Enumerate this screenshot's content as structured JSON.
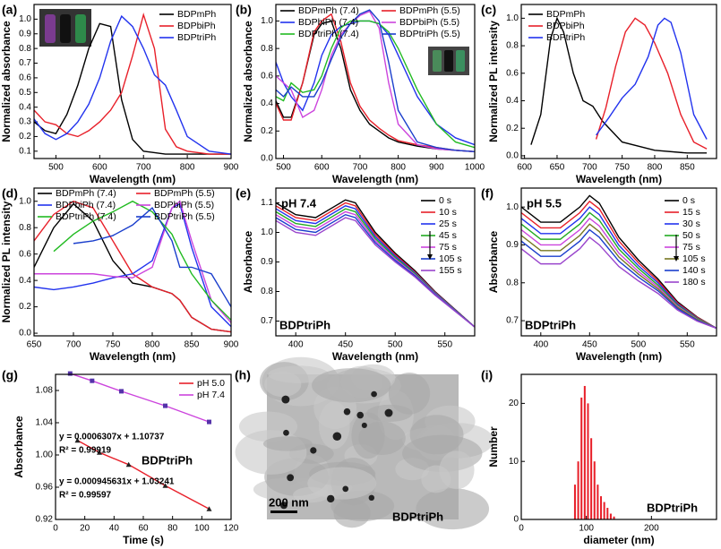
{
  "chart_data": [
    {
      "type": "line",
      "label": "(a)",
      "xlabel": "Wavelength (nm)",
      "ylabel": "Normalized absorbance",
      "xlim": [
        450,
        900
      ],
      "xticks": [
        500,
        600,
        700,
        800,
        900
      ],
      "ylim": [
        0.05,
        1.1
      ],
      "yticks": [
        0.1,
        0.2,
        0.3,
        0.4,
        0.5,
        0.6,
        0.7,
        0.8,
        0.9,
        {
          "value": 1,
          "label": "1.0"
        }
      ],
      "legend": "upper right",
      "x": [
        450,
        475,
        500,
        525,
        550,
        575,
        600,
        625,
        650,
        675,
        700,
        725,
        750,
        775,
        800,
        850,
        900
      ],
      "series": [
        {
          "name": "BDPmPh",
          "color": "#000000",
          "values": [
            0.3,
            0.24,
            0.22,
            0.35,
            0.55,
            0.8,
            0.97,
            0.95,
            0.45,
            0.18,
            0.1,
            0.09,
            0.08,
            0.08,
            0.08,
            0.08,
            0.08
          ]
        },
        {
          "name": "BDPbiPh",
          "color": "#e8202a",
          "values": [
            0.38,
            0.3,
            0.28,
            0.22,
            0.2,
            0.24,
            0.3,
            0.38,
            0.5,
            0.75,
            1.03,
            0.8,
            0.25,
            0.13,
            0.1,
            0.08,
            0.08
          ]
        },
        {
          "name": "BDPtriPh",
          "color": "#2233ee",
          "values": [
            0.32,
            0.22,
            0.18,
            0.22,
            0.3,
            0.42,
            0.6,
            0.85,
            1.02,
            0.95,
            0.8,
            0.62,
            0.55,
            0.38,
            0.2,
            0.1,
            0.08
          ]
        }
      ]
    },
    {
      "type": "line",
      "label": "(b)",
      "xlabel": "Wavelength (nm)",
      "ylabel": "Normalized absorbance",
      "xlim": [
        480,
        1000
      ],
      "xticks": [
        500,
        600,
        700,
        800,
        900,
        1000
      ],
      "ylim": [
        0,
        1.12
      ],
      "yticks": [
        {
          "value": 0,
          "label": "0.0"
        },
        0.2,
        0.4,
        0.6,
        0.8,
        {
          "value": 1,
          "label": "1.0"
        }
      ],
      "legend": "upper",
      "x": [
        480,
        500,
        520,
        550,
        580,
        600,
        625,
        650,
        675,
        700,
        725,
        750,
        775,
        800,
        850,
        900,
        950,
        1000
      ],
      "series": [
        {
          "name": "BDPmPh (7.4)",
          "color": "#000000",
          "values": [
            0.42,
            0.3,
            0.3,
            0.55,
            0.9,
            0.98,
            1.0,
            0.8,
            0.5,
            0.35,
            0.25,
            0.2,
            0.15,
            0.12,
            0.09,
            0.07,
            0.06,
            0.05
          ]
        },
        {
          "name": "BDPmPh (5.5)",
          "color": "#e8202a",
          "values": [
            0.4,
            0.28,
            0.28,
            0.55,
            0.92,
            1.0,
            1.05,
            0.85,
            0.55,
            0.38,
            0.28,
            0.22,
            0.17,
            0.13,
            0.1,
            0.08,
            0.06,
            0.05
          ]
        },
        {
          "name": "BDPbiPh (7.4)",
          "color": "#2233ee",
          "values": [
            0.7,
            0.55,
            0.45,
            0.35,
            0.55,
            0.75,
            0.9,
            0.96,
            0.98,
            1.0,
            1.0,
            0.98,
            0.9,
            0.75,
            0.45,
            0.25,
            0.15,
            0.1
          ]
        },
        {
          "name": "BDPbiPh (5.5)",
          "color": "#cc44dd",
          "values": [
            0.6,
            0.55,
            0.5,
            0.3,
            0.35,
            0.5,
            0.75,
            0.9,
            0.98,
            1.04,
            1.07,
            0.95,
            0.55,
            0.25,
            0.1,
            0.07,
            0.06,
            0.05
          ]
        },
        {
          "name": "BDPtriPh (7.4)",
          "color": "#22bb22",
          "values": [
            0.45,
            0.42,
            0.55,
            0.48,
            0.5,
            0.6,
            0.8,
            0.95,
            1.0,
            1.0,
            1.0,
            0.98,
            0.92,
            0.8,
            0.5,
            0.25,
            0.12,
            0.08
          ]
        },
        {
          "name": "BDPtriPh (5.5)",
          "color": "#1a3ecc",
          "values": [
            0.5,
            0.45,
            0.52,
            0.45,
            0.45,
            0.55,
            0.72,
            0.88,
            0.98,
            1.05,
            1.08,
            1.0,
            0.7,
            0.35,
            0.12,
            0.08,
            0.06,
            0.05
          ]
        }
      ]
    },
    {
      "type": "line",
      "label": "(c)",
      "xlabel": "Wavelength (nm)",
      "ylabel": "Normalized PL intensity",
      "xlim": [
        595,
        895
      ],
      "xticks": [
        600,
        650,
        700,
        750,
        800,
        850
      ],
      "ylim": [
        -0.02,
        1.1
      ],
      "yticks": [
        {
          "value": 0,
          "label": "0.0"
        },
        0.2,
        0.4,
        0.6,
        0.8,
        {
          "value": 1,
          "label": "1.0"
        }
      ],
      "legend": "upper left",
      "series": [
        {
          "name": "BDPmPh",
          "color": "#000000",
          "x": [
            610,
            625,
            640,
            650,
            660,
            675,
            690,
            705,
            720,
            750,
            800,
            850,
            880
          ],
          "values": [
            0.08,
            0.3,
            0.85,
            1.0,
            0.9,
            0.6,
            0.4,
            0.36,
            0.25,
            0.1,
            0.04,
            0.02,
            0.02
          ]
        },
        {
          "name": "BDPbiPh",
          "color": "#e8202a",
          "x": [
            710,
            725,
            740,
            755,
            770,
            785,
            800,
            820,
            840,
            860,
            880
          ],
          "values": [
            0.12,
            0.35,
            0.65,
            0.9,
            1.0,
            0.95,
            0.82,
            0.6,
            0.3,
            0.1,
            0.05
          ]
        },
        {
          "name": "BDPtriPh",
          "color": "#2233ee",
          "x": [
            710,
            730,
            750,
            770,
            790,
            805,
            815,
            825,
            840,
            860,
            880
          ],
          "values": [
            0.15,
            0.28,
            0.42,
            0.52,
            0.72,
            0.95,
            1.0,
            0.97,
            0.75,
            0.3,
            0.12
          ]
        }
      ]
    },
    {
      "type": "line",
      "label": "(d)",
      "xlabel": "Wavelength (nm)",
      "ylabel": "Normalized PL intensity",
      "xlim": [
        650,
        900
      ],
      "xticks": [
        650,
        700,
        750,
        800,
        850,
        900
      ],
      "ylim": [
        -0.02,
        1.1
      ],
      "yticks": [
        {
          "value": 0,
          "label": "0.0"
        },
        0.2,
        0.4,
        0.6,
        0.8,
        {
          "value": 1,
          "label": "1.0"
        }
      ],
      "legend": "upper",
      "x": [
        650,
        675,
        700,
        725,
        750,
        775,
        800,
        825,
        835,
        850,
        875,
        900
      ],
      "series": [
        {
          "name": "BDPmPh (7.4)",
          "color": "#000000",
          "values": [
            0.5,
            0.8,
            0.98,
            0.85,
            0.55,
            0.38,
            0.35,
            0.3,
            0.25,
            0.12,
            0.03,
            0.01
          ]
        },
        {
          "name": "BDPmPh (5.5)",
          "color": "#e8202a",
          "values": [
            0.7,
            0.9,
            1.0,
            0.95,
            0.7,
            0.45,
            0.35,
            0.3,
            0.25,
            0.12,
            0.03,
            0.01
          ]
        },
        {
          "name": "BDPbiPh (7.4)",
          "color": "#2233ee",
          "values": [
            0.35,
            0.33,
            0.35,
            0.38,
            0.42,
            0.45,
            0.55,
            0.95,
            0.98,
            0.65,
            0.2,
            0.05
          ]
        },
        {
          "name": "BDPbiPh (5.5)",
          "color": "#cc44dd",
          "values": [
            0.45,
            0.45,
            0.45,
            0.45,
            0.43,
            0.42,
            0.5,
            0.95,
            1.0,
            0.7,
            0.25,
            0.08
          ]
        },
        {
          "name": "BDPtriPh (7.4)",
          "color": "#22bb22",
          "values": [
            null,
            0.62,
            0.75,
            0.85,
            0.92,
            1.0,
            0.92,
            0.75,
            0.62,
            0.45,
            0.25,
            0.1
          ]
        },
        {
          "name": "BDPtriPh (5.5)",
          "color": "#1a3ecc",
          "values": [
            null,
            null,
            0.68,
            0.7,
            0.74,
            0.82,
            0.95,
            0.7,
            0.5,
            0.5,
            0.45,
            0.2
          ]
        }
      ]
    },
    {
      "type": "line",
      "label": "(e)",
      "xlabel": "Wavelength (nm)",
      "ylabel": "Absorbance",
      "xlim": [
        380,
        580
      ],
      "xticks": [
        400,
        450,
        500,
        550
      ],
      "ylim": [
        0.65,
        1.15
      ],
      "yticks": [
        0.7,
        0.8,
        0.9,
        {
          "value": 1,
          "label": "1.0"
        },
        1.1
      ],
      "legend": "right",
      "annotations": [
        "pH 7.4",
        "BDPtriPh"
      ],
      "x": [
        380,
        400,
        420,
        440,
        450,
        460,
        480,
        500,
        520,
        540,
        560,
        580
      ],
      "series": [
        {
          "name": "0 s",
          "color": "#000000",
          "values": [
            1.1,
            1.06,
            1.05,
            1.09,
            1.11,
            1.1,
            1.0,
            0.93,
            0.87,
            0.8,
            0.74,
            0.68
          ]
        },
        {
          "name": "10 s",
          "color": "#e8202a",
          "values": [
            1.09,
            1.05,
            1.04,
            1.08,
            1.1,
            1.09,
            0.993,
            0.925,
            0.866,
            0.798,
            0.739,
            0.68
          ]
        },
        {
          "name": "25 s",
          "color": "#2233ee",
          "values": [
            1.08,
            1.04,
            1.03,
            1.07,
            1.09,
            1.08,
            0.986,
            0.92,
            0.863,
            0.796,
            0.738,
            0.68
          ]
        },
        {
          "name": "45 s",
          "color": "#22aa22",
          "values": [
            1.07,
            1.03,
            1.02,
            1.06,
            1.08,
            1.07,
            0.979,
            0.915,
            0.86,
            0.794,
            0.737,
            0.68
          ]
        },
        {
          "name": "75 s",
          "color": "#cc44dd",
          "values": [
            1.06,
            1.02,
            1.01,
            1.05,
            1.07,
            1.06,
            0.972,
            0.91,
            0.856,
            0.792,
            0.736,
            0.68
          ]
        },
        {
          "name": "105 s",
          "color": "#1a3ecc",
          "values": [
            1.05,
            1.01,
            1.0,
            1.04,
            1.06,
            1.05,
            0.965,
            0.905,
            0.853,
            0.79,
            0.735,
            0.68
          ]
        },
        {
          "name": "155 s",
          "color": "#9944cc",
          "values": [
            1.04,
            1.0,
            0.99,
            1.03,
            1.05,
            1.04,
            0.958,
            0.9,
            0.849,
            0.788,
            0.734,
            0.68
          ]
        }
      ]
    },
    {
      "type": "line",
      "label": "(f)",
      "xlabel": "Wavelength (nm)",
      "ylabel": "Absorbance",
      "xlim": [
        380,
        580
      ],
      "xticks": [
        400,
        450,
        500,
        550
      ],
      "ylim": [
        0.66,
        1.05
      ],
      "yticks": [
        0.7,
        0.8,
        0.9,
        {
          "value": 1,
          "label": "1.0"
        }
      ],
      "legend": "right",
      "annotations": [
        "pH 5.5",
        "BDPtriPh"
      ],
      "x": [
        380,
        400,
        420,
        440,
        450,
        460,
        480,
        500,
        520,
        540,
        560,
        580
      ],
      "series": [
        {
          "name": "0 s",
          "color": "#000000",
          "values": [
            1.0,
            0.96,
            0.96,
            1.0,
            1.03,
            1.01,
            0.92,
            0.86,
            0.81,
            0.75,
            0.71,
            0.68
          ]
        },
        {
          "name": "15 s",
          "color": "#e8202a",
          "values": [
            0.985,
            0.945,
            0.945,
            0.985,
            1.015,
            0.995,
            0.91,
            0.853,
            0.805,
            0.747,
            0.709,
            0.68
          ]
        },
        {
          "name": "30 s",
          "color": "#2233ee",
          "values": [
            0.97,
            0.93,
            0.93,
            0.97,
            1.0,
            0.98,
            0.899,
            0.845,
            0.8,
            0.744,
            0.707,
            0.68
          ]
        },
        {
          "name": "50 s",
          "color": "#22aa22",
          "values": [
            0.955,
            0.915,
            0.915,
            0.955,
            0.985,
            0.965,
            0.889,
            0.838,
            0.794,
            0.741,
            0.706,
            0.68
          ]
        },
        {
          "name": "75 s",
          "color": "#cc44dd",
          "values": [
            0.94,
            0.9,
            0.9,
            0.94,
            0.97,
            0.95,
            0.878,
            0.83,
            0.789,
            0.738,
            0.704,
            0.68
          ]
        },
        {
          "name": "105 s",
          "color": "#777722",
          "values": [
            0.925,
            0.885,
            0.885,
            0.925,
            0.955,
            0.935,
            0.868,
            0.823,
            0.784,
            0.735,
            0.703,
            0.68
          ]
        },
        {
          "name": "140 s",
          "color": "#1a3ecc",
          "values": [
            0.91,
            0.87,
            0.87,
            0.91,
            0.94,
            0.92,
            0.857,
            0.815,
            0.779,
            0.732,
            0.701,
            0.68
          ]
        },
        {
          "name": "180 s",
          "color": "#9944cc",
          "values": [
            0.89,
            0.85,
            0.85,
            0.89,
            0.92,
            0.9,
            0.843,
            0.805,
            0.772,
            0.728,
            0.699,
            0.68
          ]
        }
      ]
    },
    {
      "type": "scatter",
      "label": "(g)",
      "xlabel": "Time (s)",
      "ylabel": "Absorbance",
      "xlim": [
        0,
        120
      ],
      "xticks": [
        0,
        20,
        40,
        60,
        80,
        100,
        120
      ],
      "ylim": [
        0.92,
        1.1
      ],
      "yticks": [
        0.92,
        0.96,
        {
          "value": 1,
          "label": "1.00"
        },
        1.04,
        1.08
      ],
      "legend": "upper right",
      "annotations": [
        "y = 0.0006307x + 1.10737",
        "R² = 0.99919",
        "BDPtriPh",
        "y = 0.000945631x + 1.03241",
        "R² = 0.99597"
      ],
      "series": [
        {
          "name": "pH 5.0",
          "color": "#e8202a",
          "x": [
            15,
            30,
            50,
            75,
            105
          ],
          "values": [
            1.018,
            1.003,
            0.988,
            0.962,
            0.933
          ]
        },
        {
          "name": "pH 7.4",
          "color": "#cc44dd",
          "x": [
            10,
            25,
            45,
            75,
            105
          ],
          "values": [
            1.101,
            1.092,
            1.079,
            1.061,
            1.041
          ]
        }
      ]
    },
    {
      "type": "image",
      "label": "(h)",
      "annotations": [
        "200 nm",
        "BDPtriPh"
      ]
    },
    {
      "type": "histogram",
      "label": "(i)",
      "xlabel": "diameter (nm)",
      "ylabel": "Number",
      "xlim": [
        0,
        300
      ],
      "xticks": [
        0,
        100,
        200
      ],
      "ylim": [
        0,
        25
      ],
      "yticks": [
        0,
        10,
        20
      ],
      "color": "#e8202a",
      "annotations": [
        "BDPtriPh"
      ],
      "bins": [
        80,
        85,
        90,
        95,
        100,
        105,
        110,
        115,
        120,
        125,
        130,
        135,
        140,
        145
      ],
      "values": [
        6,
        10,
        21,
        23,
        20,
        14,
        10,
        6,
        4,
        3,
        2,
        1,
        0.5
      ]
    }
  ]
}
